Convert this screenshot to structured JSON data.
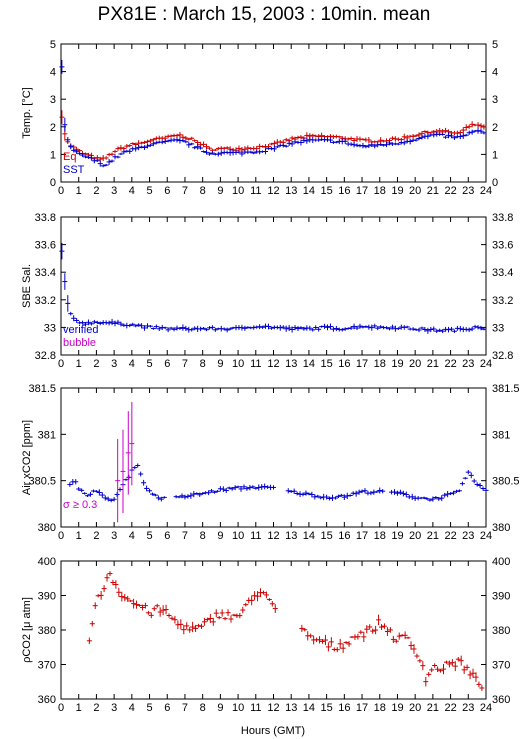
{
  "page": {
    "title": "PX81E : March 15, 2003 : 10min. mean",
    "xlabel": "Hours (GMT)"
  },
  "colors": {
    "red": "#cc0000",
    "blue": "#0000cc",
    "magenta": "#cc00cc",
    "axis": "#000000"
  },
  "chart_data": [
    {
      "id": "temp",
      "type": "scatter",
      "ylabel": "Temp. [°C]",
      "xlim": [
        0,
        24
      ],
      "ylim": [
        0,
        5
      ],
      "xticks": [
        "0",
        "1",
        "2",
        "3",
        "4",
        "5",
        "6",
        "7",
        "8",
        "9",
        "10",
        "11",
        "12",
        "13",
        "14",
        "15",
        "16",
        "17",
        "18",
        "19",
        "20",
        "21",
        "22",
        "23",
        "24"
      ],
      "yticks": [
        "0",
        "1",
        "2",
        "3",
        "4",
        "5"
      ],
      "legend": [
        {
          "label": "Eq",
          "color": "#cc0000"
        },
        {
          "label": "SST",
          "color": "#0000cc"
        }
      ],
      "series": [
        {
          "name": "Eq",
          "color": "#cc0000",
          "anchors": [
            [
              0.05,
              2.4
            ],
            [
              0.2,
              1.8
            ],
            [
              0.4,
              1.4
            ],
            [
              0.8,
              1.2
            ],
            [
              1.2,
              1.05
            ],
            [
              1.6,
              0.95
            ],
            [
              2.0,
              0.85
            ],
            [
              2.3,
              0.8
            ],
            [
              2.6,
              0.9
            ],
            [
              3.0,
              1.1
            ],
            [
              3.5,
              1.25
            ],
            [
              4.0,
              1.35
            ],
            [
              4.5,
              1.4
            ],
            [
              5.0,
              1.5
            ],
            [
              5.5,
              1.55
            ],
            [
              6.0,
              1.6
            ],
            [
              6.5,
              1.7
            ],
            [
              7.0,
              1.65
            ],
            [
              7.5,
              1.5
            ],
            [
              8.0,
              1.35
            ],
            [
              8.3,
              1.2
            ],
            [
              9.0,
              1.2
            ],
            [
              10.0,
              1.2
            ],
            [
              11.0,
              1.25
            ],
            [
              12.0,
              1.35
            ],
            [
              12.5,
              1.45
            ],
            [
              13.0,
              1.55
            ],
            [
              14.0,
              1.65
            ],
            [
              15.0,
              1.65
            ],
            [
              16.0,
              1.6
            ],
            [
              16.5,
              1.55
            ],
            [
              17.0,
              1.5
            ],
            [
              17.5,
              1.5
            ],
            [
              18.0,
              1.5
            ],
            [
              19.0,
              1.55
            ],
            [
              20.0,
              1.7
            ],
            [
              21.0,
              1.85
            ],
            [
              22.0,
              1.8
            ],
            [
              22.5,
              1.75
            ],
            [
              23.0,
              2.0
            ],
            [
              23.5,
              2.1
            ],
            [
              24.0,
              1.9
            ]
          ]
        },
        {
          "name": "SST",
          "color": "#0000cc",
          "anchors": [
            [
              0.05,
              4.2
            ],
            [
              0.15,
              2.4
            ],
            [
              0.3,
              1.6
            ],
            [
              0.6,
              1.2
            ],
            [
              1.0,
              1.0
            ],
            [
              1.5,
              0.9
            ],
            [
              2.0,
              0.75
            ],
            [
              2.5,
              0.6
            ],
            [
              3.0,
              0.85
            ],
            [
              3.5,
              1.05
            ],
            [
              4.0,
              1.15
            ],
            [
              4.5,
              1.25
            ],
            [
              5.0,
              1.35
            ],
            [
              5.5,
              1.4
            ],
            [
              6.0,
              1.45
            ],
            [
              6.5,
              1.5
            ],
            [
              7.0,
              1.45
            ],
            [
              7.5,
              1.3
            ],
            [
              8.0,
              1.15
            ],
            [
              8.3,
              1.05
            ],
            [
              9.0,
              1.05
            ],
            [
              10.0,
              1.05
            ],
            [
              11.0,
              1.1
            ],
            [
              12.0,
              1.2
            ],
            [
              12.5,
              1.3
            ],
            [
              13.0,
              1.4
            ],
            [
              14.0,
              1.5
            ],
            [
              15.0,
              1.5
            ],
            [
              16.0,
              1.45
            ],
            [
              16.5,
              1.35
            ],
            [
              17.0,
              1.3
            ],
            [
              17.5,
              1.3
            ],
            [
              18.0,
              1.35
            ],
            [
              19.0,
              1.4
            ],
            [
              20.0,
              1.55
            ],
            [
              21.0,
              1.7
            ],
            [
              22.0,
              1.65
            ],
            [
              22.5,
              1.6
            ],
            [
              23.0,
              1.75
            ],
            [
              23.5,
              1.85
            ],
            [
              24.0,
              1.75
            ]
          ]
        }
      ]
    },
    {
      "id": "sal",
      "type": "scatter",
      "ylabel": "SBE Sal.",
      "xlim": [
        0,
        24
      ],
      "ylim": [
        32.8,
        33.8
      ],
      "xticks": [
        "0",
        "1",
        "2",
        "3",
        "4",
        "5",
        "6",
        "7",
        "8",
        "9",
        "10",
        "11",
        "12",
        "13",
        "14",
        "15",
        "16",
        "17",
        "18",
        "19",
        "20",
        "21",
        "22",
        "23",
        "24"
      ],
      "yticks": [
        "32.8",
        "33",
        "33.2",
        "33.4",
        "33.6",
        "33.8"
      ],
      "legend": [
        {
          "label": "verified",
          "color": "#0000cc"
        },
        {
          "label": "bubble",
          "color": "#cc00cc"
        }
      ],
      "series": [
        {
          "name": "verified",
          "color": "#0000cc",
          "anchors": [
            [
              0.05,
              33.55
            ],
            [
              0.2,
              33.35
            ],
            [
              0.4,
              33.15
            ],
            [
              0.6,
              33.07
            ],
            [
              1.0,
              33.04
            ],
            [
              1.5,
              33.03
            ],
            [
              2.0,
              33.04
            ],
            [
              3.0,
              33.03
            ],
            [
              4.0,
              33.02
            ],
            [
              5.0,
              33.0
            ],
            [
              6.0,
              32.99
            ],
            [
              8.0,
              32.99
            ],
            [
              10.0,
              32.99
            ],
            [
              11.0,
              33.01
            ],
            [
              12.0,
              33.0
            ],
            [
              13.0,
              32.99
            ],
            [
              14.0,
              32.99
            ],
            [
              15.0,
              33.0
            ],
            [
              16.0,
              32.99
            ],
            [
              17.0,
              33.01
            ],
            [
              18.0,
              33.0
            ],
            [
              19.0,
              33.0
            ],
            [
              20.0,
              32.99
            ],
            [
              21.0,
              32.98
            ],
            [
              22.0,
              32.98
            ],
            [
              23.0,
              32.99
            ],
            [
              23.5,
              33.01
            ],
            [
              24.0,
              32.99
            ]
          ]
        }
      ]
    },
    {
      "id": "air",
      "type": "scatter",
      "ylabel": "Air xCO2 [ppm]",
      "xlim": [
        0,
        24
      ],
      "ylim": [
        380,
        381.5
      ],
      "xticks": [
        "0",
        "1",
        "2",
        "3",
        "4",
        "5",
        "6",
        "7",
        "8",
        "9",
        "10",
        "11",
        "12",
        "13",
        "14",
        "15",
        "16",
        "17",
        "18",
        "19",
        "20",
        "21",
        "22",
        "23",
        "24"
      ],
      "yticks": [
        "380",
        "380.5",
        "381",
        "381.5"
      ],
      "legend": [
        {
          "label": "σ ≥ 0.3",
          "color": "#cc00cc"
        }
      ],
      "series": [
        {
          "name": "",
          "color": "#0000cc",
          "anchors": [
            [
              0.5,
              380.45
            ],
            [
              0.8,
              380.5
            ],
            [
              1.0,
              380.4
            ],
            [
              1.5,
              380.35
            ],
            [
              2.0,
              380.4
            ],
            [
              2.5,
              380.3
            ],
            [
              3.0,
              380.3
            ],
            [
              3.5,
              380.45
            ],
            [
              4.0,
              380.6
            ],
            [
              4.3,
              380.7
            ],
            [
              4.6,
              380.5
            ],
            [
              5.0,
              380.38
            ],
            [
              5.5,
              380.32
            ],
            [
              6.0,
              380.3
            ],
            [
              7.0,
              380.33
            ],
            [
              8.0,
              380.36
            ],
            [
              9.0,
              380.4
            ],
            [
              10.0,
              380.42
            ],
            [
              11.0,
              380.43
            ],
            [
              12.0,
              380.42
            ],
            [
              13.0,
              380.38
            ],
            [
              14.0,
              380.35
            ],
            [
              15.0,
              380.32
            ],
            [
              16.0,
              380.33
            ],
            [
              17.0,
              380.38
            ],
            [
              18.0,
              380.38
            ],
            [
              19.0,
              380.37
            ],
            [
              20.0,
              380.32
            ],
            [
              21.0,
              380.3
            ],
            [
              22.0,
              380.35
            ],
            [
              22.5,
              380.38
            ],
            [
              23.0,
              380.6
            ],
            [
              23.5,
              380.45
            ],
            [
              24.0,
              380.4
            ]
          ],
          "gaps": [
            [
              6.0,
              6.5
            ],
            [
              12.1,
              12.8
            ],
            [
              18.2,
              18.6
            ]
          ]
        },
        {
          "name": "σ ≥ 0.3",
          "color": "#cc00cc",
          "points": [
            [
              3.2,
              380.5
            ],
            [
              3.5,
              380.6
            ],
            [
              3.8,
              380.8
            ],
            [
              4.0,
              380.9
            ]
          ]
        }
      ]
    },
    {
      "id": "pco2",
      "type": "scatter",
      "ylabel": "ρCO2 [μ atm]",
      "xlim": [
        0,
        24
      ],
      "ylim": [
        360,
        400
      ],
      "xticks": [
        "0",
        "1",
        "2",
        "3",
        "4",
        "5",
        "6",
        "7",
        "8",
        "9",
        "10",
        "11",
        "12",
        "13",
        "14",
        "15",
        "16",
        "17",
        "18",
        "19",
        "20",
        "21",
        "22",
        "23",
        "24"
      ],
      "yticks": [
        "360",
        "370",
        "380",
        "390",
        "400"
      ],
      "series": [
        {
          "name": "",
          "color": "#cc0000",
          "anchors": [
            [
              1.6,
              378
            ],
            [
              1.8,
              383
            ],
            [
              2.0,
              388
            ],
            [
              2.4,
              392
            ],
            [
              2.7,
              397
            ],
            [
              3.0,
              394
            ],
            [
              3.5,
              390
            ],
            [
              4.0,
              388
            ],
            [
              4.5,
              387
            ],
            [
              5.0,
              385
            ],
            [
              5.5,
              386
            ],
            [
              6.0,
              385
            ],
            [
              6.5,
              382
            ],
            [
              7.0,
              381
            ],
            [
              7.5,
              380
            ],
            [
              8.0,
              381
            ],
            [
              8.5,
              383
            ],
            [
              9.0,
              385
            ],
            [
              9.5,
              384
            ],
            [
              10.0,
              384
            ],
            [
              10.5,
              387
            ],
            [
              11.0,
              390
            ],
            [
              11.3,
              392
            ],
            [
              11.6,
              390
            ],
            [
              12.0,
              386
            ],
            [
              12.2,
              385
            ]
          ],
          "anchors2": [
            [
              13.6,
              380
            ],
            [
              14.0,
              378
            ],
            [
              14.5,
              377
            ],
            [
              15.0,
              376
            ],
            [
              15.5,
              375
            ],
            [
              16.0,
              376
            ],
            [
              16.5,
              378
            ],
            [
              17.0,
              379
            ],
            [
              17.5,
              380
            ],
            [
              18.0,
              382
            ],
            [
              18.5,
              380
            ],
            [
              19.0,
              377
            ],
            [
              19.5,
              378
            ],
            [
              20.0,
              374
            ],
            [
              20.3,
              372
            ],
            [
              20.6,
              366
            ],
            [
              21.0,
              369
            ],
            [
              21.5,
              369
            ],
            [
              22.0,
              370
            ],
            [
              22.5,
              371
            ],
            [
              23.0,
              368
            ],
            [
              23.5,
              365
            ],
            [
              23.8,
              364
            ]
          ]
        }
      ]
    }
  ]
}
